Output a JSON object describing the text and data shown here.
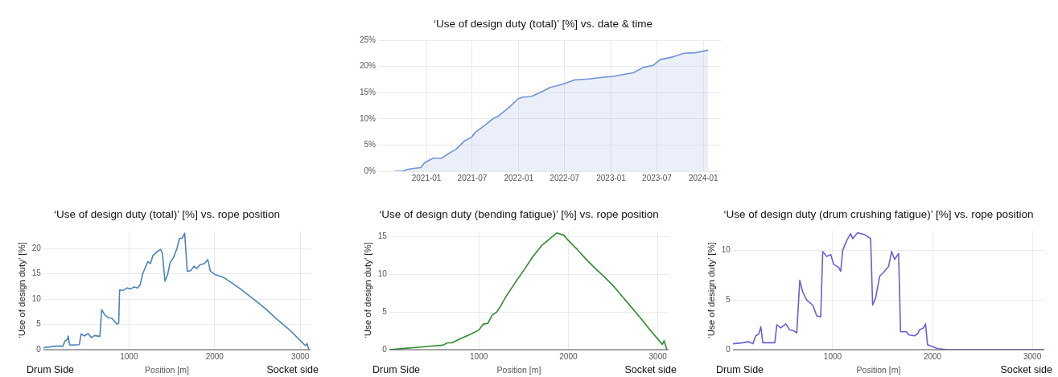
{
  "chart_data": [
    {
      "type": "area",
      "title": "‘Use of design duty (total)’ [%] vs. date & time",
      "x": [
        "2020-08-30",
        "2020-09-30",
        "2020-10-15",
        "2020-11-05",
        "2020-12-10",
        "2020-12-26",
        "2021-01-28",
        "2021-03-03",
        "2021-03-20",
        "2021-04-28",
        "2021-06-01",
        "2021-06-28",
        "2021-07-15",
        "2021-08-18",
        "2021-09-20",
        "2021-10-12",
        "2021-11-26",
        "2021-12-29",
        "2022-01-15",
        "2022-02-22",
        "2022-04-07",
        "2022-05-05",
        "2022-06-25",
        "2022-08-08",
        "2022-10-03",
        "2022-11-27",
        "2023-01-10",
        "2023-02-13",
        "2023-03-30",
        "2023-05-08",
        "2023-06-16",
        "2023-07-14",
        "2023-09-02",
        "2023-10-16",
        "2023-11-30",
        "2024-01-20"
      ],
      "series": [
        {
          "color": "#6f93d6",
          "values": [
            0,
            0,
            0.3,
            0.5,
            0.7,
            1.7,
            2.5,
            2.5,
            3.1,
            4.2,
            5.8,
            6.5,
            7.5,
            8.7,
            10.0,
            10.5,
            12.3,
            13.8,
            14.1,
            14.3,
            15.3,
            16.0,
            16.6,
            17.4,
            17.6,
            17.9,
            18.1,
            18.4,
            18.8,
            19.8,
            20.2,
            21.3,
            21.8,
            22.5,
            22.6,
            23.1
          ]
        }
      ],
      "xlim": [
        "2020-06-24",
        "2024-03-10"
      ],
      "xticks": [
        "2021-01",
        "2021-07",
        "2022-01",
        "2022-07",
        "2023-01",
        "2023-07",
        "2024-01"
      ],
      "ylim": [
        0,
        25
      ],
      "yticks": [
        {
          "value": 0,
          "label": "0%"
        },
        {
          "value": 5,
          "label": "5%"
        },
        {
          "value": 10,
          "label": "10%"
        },
        {
          "value": 15,
          "label": "15%"
        },
        {
          "value": 20,
          "label": "20%"
        },
        {
          "value": 25,
          "label": "25%"
        }
      ],
      "grid": true
    },
    {
      "type": "line",
      "title": "‘Use of design duty (total)’ [%] vs. rope position",
      "xlabel": "Position [m]",
      "ylabel": "‘Use of design duty’ [%]",
      "annotations": [
        "Drum Side",
        "Socket side"
      ],
      "x": [
        0,
        150,
        230,
        250,
        280,
        290,
        305,
        320,
        420,
        440,
        480,
        520,
        560,
        600,
        660,
        680,
        720,
        760,
        800,
        860,
        880,
        890,
        930,
        980,
        1020,
        1060,
        1100,
        1130,
        1160,
        1220,
        1250,
        1280,
        1340,
        1370,
        1390,
        1420,
        1450,
        1480,
        1520,
        1560,
        1590,
        1620,
        1650,
        1680,
        1720,
        1760,
        1790,
        1830,
        1880,
        1920,
        1950,
        2000,
        2100,
        2200,
        2300,
        2400,
        2500,
        2600,
        2700,
        2800,
        2900,
        3000,
        3060,
        3080,
        3100
      ],
      "series": [
        {
          "color": "#4a84b8",
          "values": [
            0.4,
            0.7,
            0.7,
            1.7,
            2,
            2.7,
            1.0,
            0.9,
            1.0,
            3.1,
            2.7,
            3.2,
            2.4,
            2.8,
            2.6,
            7.9,
            6.8,
            6.3,
            6.2,
            5.0,
            5.3,
            11.8,
            11.7,
            12.2,
            12.0,
            12.4,
            12.2,
            12.8,
            15.0,
            17.4,
            17.0,
            18.6,
            19.5,
            19.8,
            19.0,
            13.5,
            14.8,
            17.2,
            18.2,
            20.0,
            22.0,
            22.0,
            23.0,
            15.5,
            15.6,
            16.5,
            16.0,
            16.8,
            17.0,
            17.8,
            15.5,
            14.9,
            14.3,
            13.2,
            12.0,
            10.7,
            9.4,
            8.0,
            6.4,
            5.0,
            3.5,
            1.8,
            0.8,
            1.2,
            0
          ]
        }
      ],
      "xlim": [
        0,
        3120
      ],
      "xticks": [
        1000,
        2000,
        3000
      ],
      "ylim": [
        0,
        23.5
      ],
      "yticks": [
        0,
        5,
        10,
        15,
        20
      ],
      "grid": true
    },
    {
      "type": "line",
      "title": "‘Use of design duty (bending fatigue)’ [%] vs. rope position",
      "xlabel": "Position [m]",
      "ylabel": "‘Use of design duty’ [%]",
      "annotations": [
        "Drum Side",
        "Socket side"
      ],
      "x": [
        0,
        200,
        400,
        600,
        650,
        700,
        800,
        900,
        1000,
        1050,
        1100,
        1150,
        1200,
        1250,
        1300,
        1400,
        1500,
        1600,
        1700,
        1800,
        1870,
        1950,
        2000,
        2100,
        2200,
        2300,
        2400,
        2500,
        2600,
        2700,
        2800,
        2900,
        3000,
        3050,
        3070,
        3100
      ],
      "series": [
        {
          "color": "#2e8b2e",
          "values": [
            0,
            0.2,
            0.4,
            0.6,
            0.9,
            0.9,
            1.5,
            2.0,
            2.6,
            3.4,
            3.5,
            4.6,
            5.0,
            5.9,
            7.0,
            8.8,
            10.5,
            12.3,
            13.8,
            14.8,
            15.5,
            15.2,
            14.5,
            13.3,
            12.0,
            10.8,
            9.7,
            8.5,
            7.1,
            5.7,
            4.3,
            2.8,
            1.4,
            0.7,
            1.2,
            0
          ]
        }
      ],
      "xlim": [
        0,
        3120
      ],
      "xticks": [
        1000,
        2000,
        3000
      ],
      "ylim": [
        0,
        15.8
      ],
      "yticks": [
        0,
        5,
        10,
        15
      ],
      "grid": true
    },
    {
      "type": "line",
      "title": "‘Use of design duty (drum crushing fatigue)’ [%] vs. rope position",
      "xlabel": "Position [m]",
      "ylabel": "‘Use of design duty’ [%]",
      "annotations": [
        "Drum Side",
        "Socket side"
      ],
      "x": [
        0,
        100,
        150,
        180,
        200,
        230,
        260,
        280,
        300,
        420,
        440,
        480,
        530,
        570,
        610,
        640,
        670,
        700,
        740,
        800,
        840,
        880,
        900,
        940,
        980,
        1010,
        1060,
        1080,
        1100,
        1140,
        1180,
        1200,
        1250,
        1320,
        1380,
        1400,
        1430,
        1470,
        1510,
        1560,
        1590,
        1620,
        1660,
        1680,
        1740,
        1760,
        1820,
        1850,
        1870,
        1910,
        1930,
        1950,
        2000,
        2050,
        2150,
        3120
      ],
      "series": [
        {
          "color": "#6a5fd6",
          "values": [
            0.6,
            0.7,
            0.8,
            0.7,
            0.6,
            1.4,
            1.6,
            2.3,
            0.7,
            0.7,
            2.5,
            2.2,
            2.6,
            2.0,
            1.9,
            1.7,
            7.0,
            5.8,
            5.0,
            4.5,
            3.4,
            3.3,
            9.9,
            9.4,
            9.6,
            8.6,
            8.3,
            7.9,
            10.0,
            11.0,
            11.7,
            11.2,
            11.8,
            11.6,
            11.2,
            4.5,
            5.2,
            7.4,
            7.8,
            8.4,
            9.9,
            9.1,
            9.7,
            1.8,
            1.8,
            1.5,
            1.4,
            1.6,
            2.0,
            2.2,
            2.6,
            0.5,
            0.3,
            0.1,
            0,
            0
          ]
        }
      ],
      "xlim": [
        0,
        3120
      ],
      "xticks": [
        1000,
        2000,
        3000
      ],
      "ylim": [
        0,
        12
      ],
      "yticks": [
        0,
        5,
        10
      ],
      "grid": true
    }
  ]
}
